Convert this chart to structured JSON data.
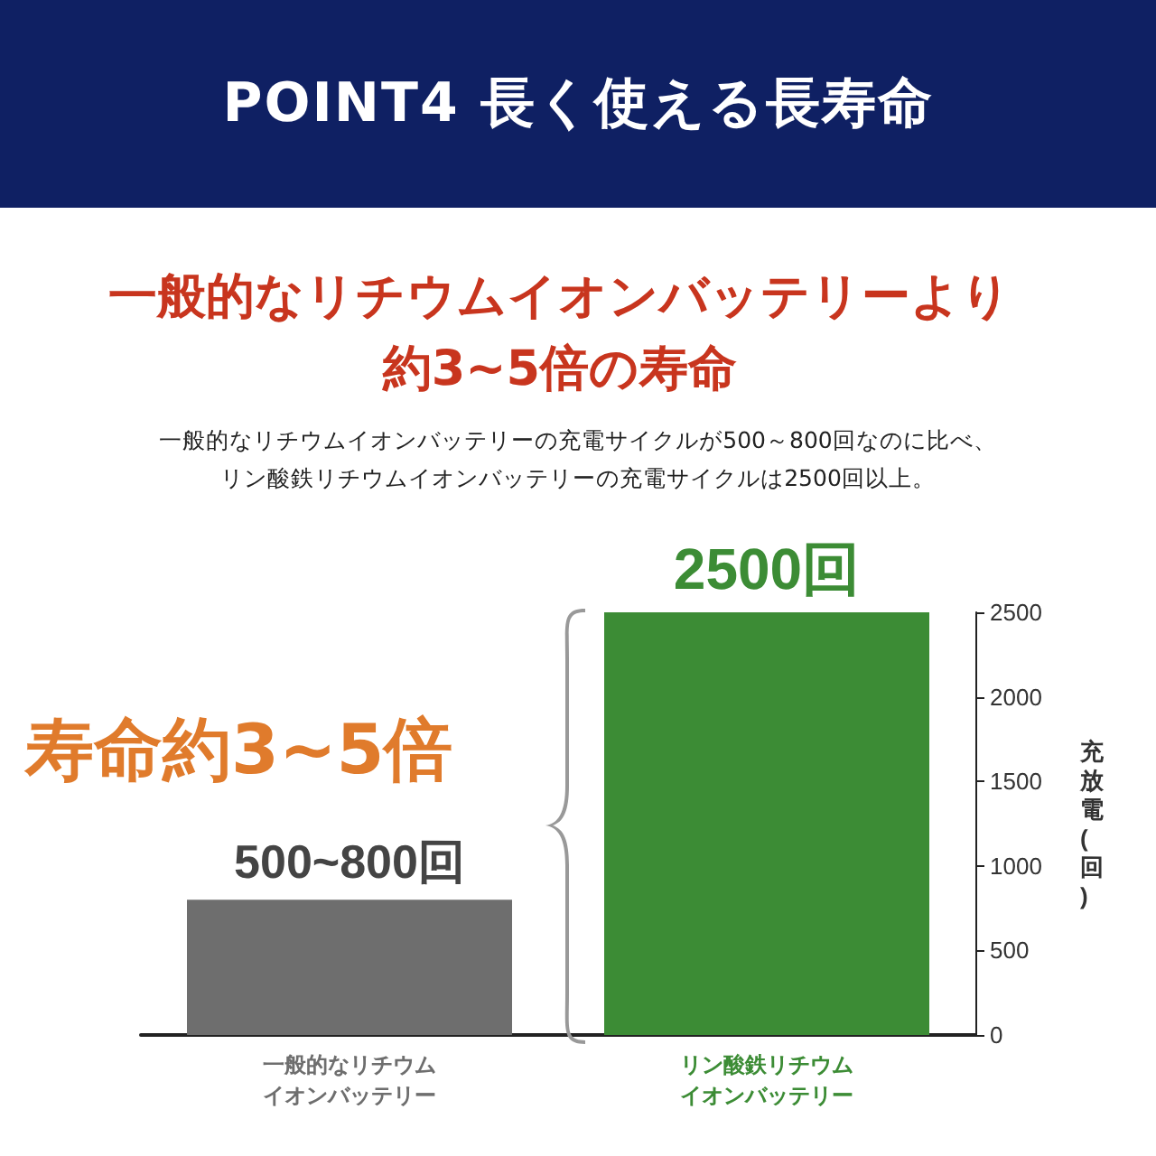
{
  "chart_data": {
    "type": "bar",
    "title": "POINT4 長く使える長寿命",
    "subtitle": "一般的なリチウムイオンバッテリーより約3~5倍の寿命",
    "annotations": [
      "一般的なリチウムイオンバッテリーの充電サイクルが500～800回なのに比べ、リン酸鉄リチウムイオンバッテリーの充電サイクルは2500回以上。",
      "寿命約3~5倍"
    ],
    "categories": [
      "一般的なリチウムイオンバッテリー",
      "リン酸鉄リチウムイオンバッテリー"
    ],
    "values": [
      800,
      2500
    ],
    "colors": [
      "#6e6e6e",
      "#3c8c35"
    ],
    "value_labels": [
      "500~800回",
      "2500回"
    ],
    "ylabel": "充放電(回)",
    "ylim": [
      0,
      2500
    ],
    "yticks": [
      0,
      500,
      1000,
      1500,
      2000,
      2500
    ],
    "grid": false
  }
}
